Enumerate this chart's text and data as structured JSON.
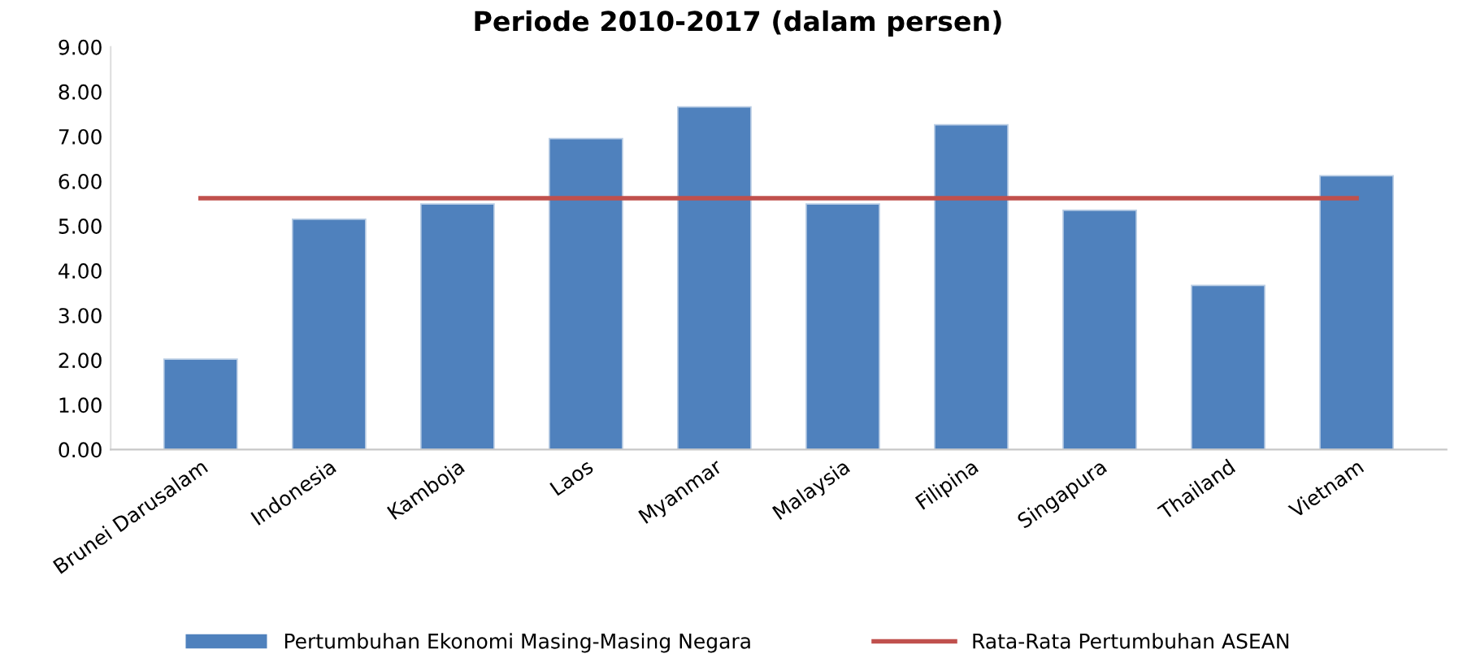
{
  "chart_data": {
    "type": "bar",
    "title": "Periode 2010-2017 (dalam persen)",
    "categories": [
      "Brunei Darusalam",
      "Indonesia",
      "Kamboja",
      "Laos",
      "Myanmar",
      "Malaysia",
      "Filipina",
      "Singapura",
      "Thailand",
      "Vietnam"
    ],
    "series": [
      {
        "name": "Pertumbuhan Ekonomi Masing-Masing Negara",
        "color": "#4f81bd",
        "values": [
          2.02,
          5.15,
          5.49,
          6.95,
          7.66,
          5.49,
          7.26,
          5.35,
          3.67,
          6.12
        ]
      },
      {
        "name": "Rata-Rata Pertumbuhan ASEAN",
        "type": "line",
        "color": "#c0504d",
        "values": [
          5.62,
          5.62,
          5.62,
          5.62,
          5.62,
          5.62,
          5.62,
          5.62,
          5.62,
          5.62
        ]
      }
    ],
    "ylim": [
      0,
      9
    ],
    "yticks": [
      {
        "value": 0,
        "label": "0.00"
      },
      {
        "value": 1,
        "label": "1.00"
      },
      {
        "value": 2,
        "label": "2.00"
      },
      {
        "value": 3,
        "label": "3.00"
      },
      {
        "value": 4,
        "label": "4.00"
      },
      {
        "value": 5,
        "label": "5.00"
      },
      {
        "value": 6,
        "label": "6.00"
      },
      {
        "value": 7,
        "label": "7.00"
      },
      {
        "value": 8,
        "label": "8.00"
      },
      {
        "value": 9,
        "label": "9.00"
      }
    ],
    "grid": false,
    "legend": "bottom",
    "marker": "none",
    "line_style": "solid"
  }
}
